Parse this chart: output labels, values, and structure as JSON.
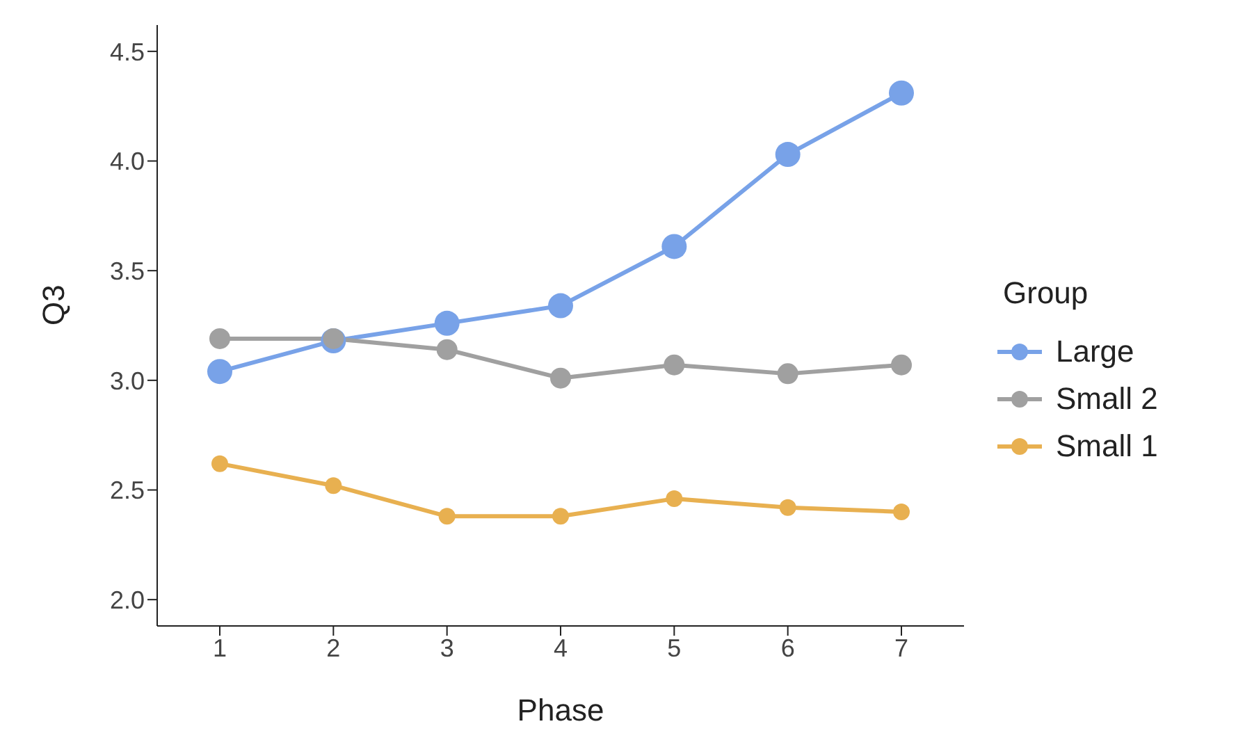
{
  "chart_data": {
    "type": "line",
    "xlabel": "Phase",
    "ylabel": "Q3",
    "legend_title": "Group",
    "categories": [
      "1",
      "2",
      "3",
      "4",
      "5",
      "6",
      "7"
    ],
    "series": [
      {
        "name": "Large",
        "color": "#78a2e8",
        "values": [
          3.04,
          3.18,
          3.26,
          3.34,
          3.61,
          4.03,
          4.31
        ]
      },
      {
        "name": "Small 2",
        "color": "#a0a0a0",
        "values": [
          3.19,
          3.19,
          3.14,
          3.01,
          3.07,
          3.03,
          3.07
        ]
      },
      {
        "name": "Small 1",
        "color": "#e8b050",
        "values": [
          2.62,
          2.52,
          2.38,
          2.38,
          2.46,
          2.42,
          2.4
        ]
      }
    ],
    "ylim": [
      1.88,
      4.62
    ],
    "yticks": [
      {
        "value": 2,
        "label": "2.0"
      },
      2.5,
      {
        "value": 3,
        "label": "3.0"
      },
      3.5,
      {
        "value": 4,
        "label": "4.0"
      },
      4.5
    ],
    "grid": false,
    "legend": "right",
    "marker": "circle",
    "line_style": "solid"
  }
}
